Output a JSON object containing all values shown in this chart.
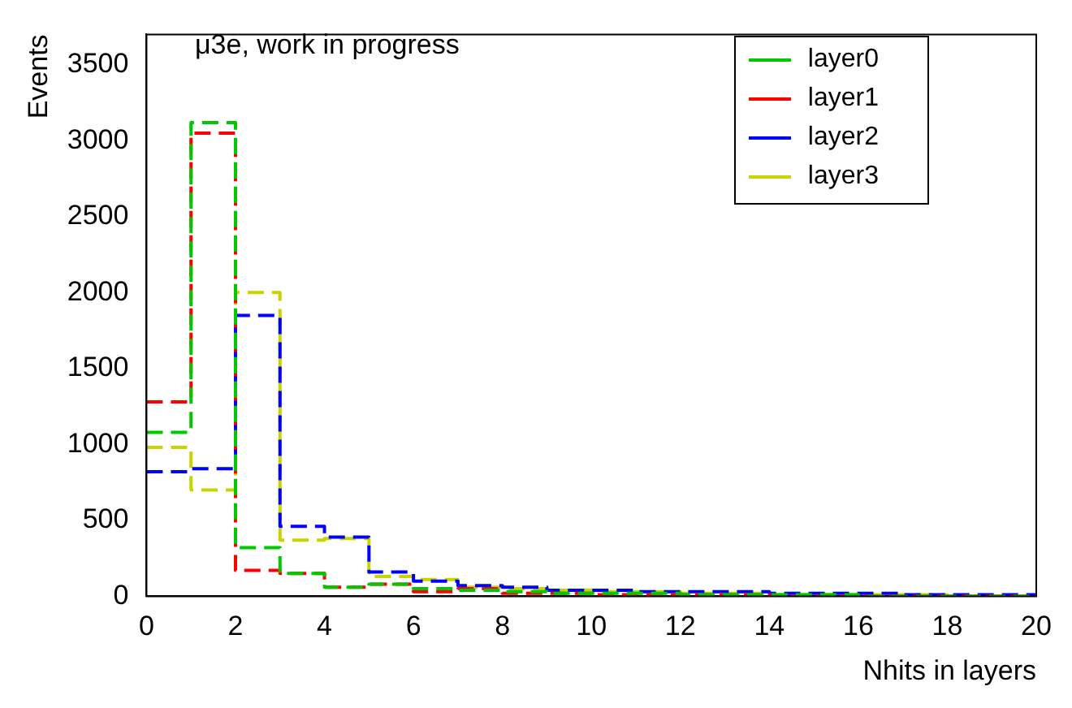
{
  "chart_data": {
    "type": "histogram",
    "title": "μ3e, work in progress",
    "xlabel": "Nhits in layers",
    "ylabel": "Events",
    "bins": [
      0,
      1,
      2,
      3,
      4,
      5,
      6,
      7,
      8,
      9,
      10,
      11,
      12,
      13,
      14,
      15,
      16,
      17,
      18,
      19,
      20
    ],
    "series": [
      {
        "name": "layer0",
        "color": "#00c800",
        "values": [
          1080,
          3120,
          320,
          150,
          60,
          80,
          50,
          40,
          30,
          20,
          20,
          20,
          10,
          10,
          10,
          10,
          0,
          0,
          0,
          0
        ]
      },
      {
        "name": "layer1",
        "color": "#ff0000",
        "values": [
          1280,
          3050,
          170,
          150,
          60,
          80,
          30,
          50,
          20,
          20,
          10,
          10,
          10,
          10,
          0,
          0,
          0,
          0,
          0,
          0
        ]
      },
      {
        "name": "layer2",
        "color": "#0000ff",
        "values": [
          820,
          840,
          1850,
          460,
          390,
          160,
          100,
          70,
          60,
          40,
          40,
          30,
          30,
          30,
          20,
          20,
          20,
          10,
          10,
          10
        ]
      },
      {
        "name": "layer3",
        "color": "#c8d400",
        "values": [
          980,
          700,
          2000,
          370,
          380,
          130,
          110,
          60,
          50,
          40,
          30,
          30,
          20,
          20,
          10,
          10,
          10,
          10,
          0,
          0
        ]
      }
    ],
    "xlim": [
      0,
      20
    ],
    "xticks": [
      0,
      2,
      4,
      6,
      8,
      10,
      12,
      14,
      16,
      18,
      20
    ],
    "ylim": [
      0,
      3700
    ],
    "yticks": [
      0,
      500,
      1000,
      1500,
      2000,
      2500,
      3000,
      3500
    ],
    "grid": false,
    "legend": "top right",
    "line_style": "dashed"
  }
}
